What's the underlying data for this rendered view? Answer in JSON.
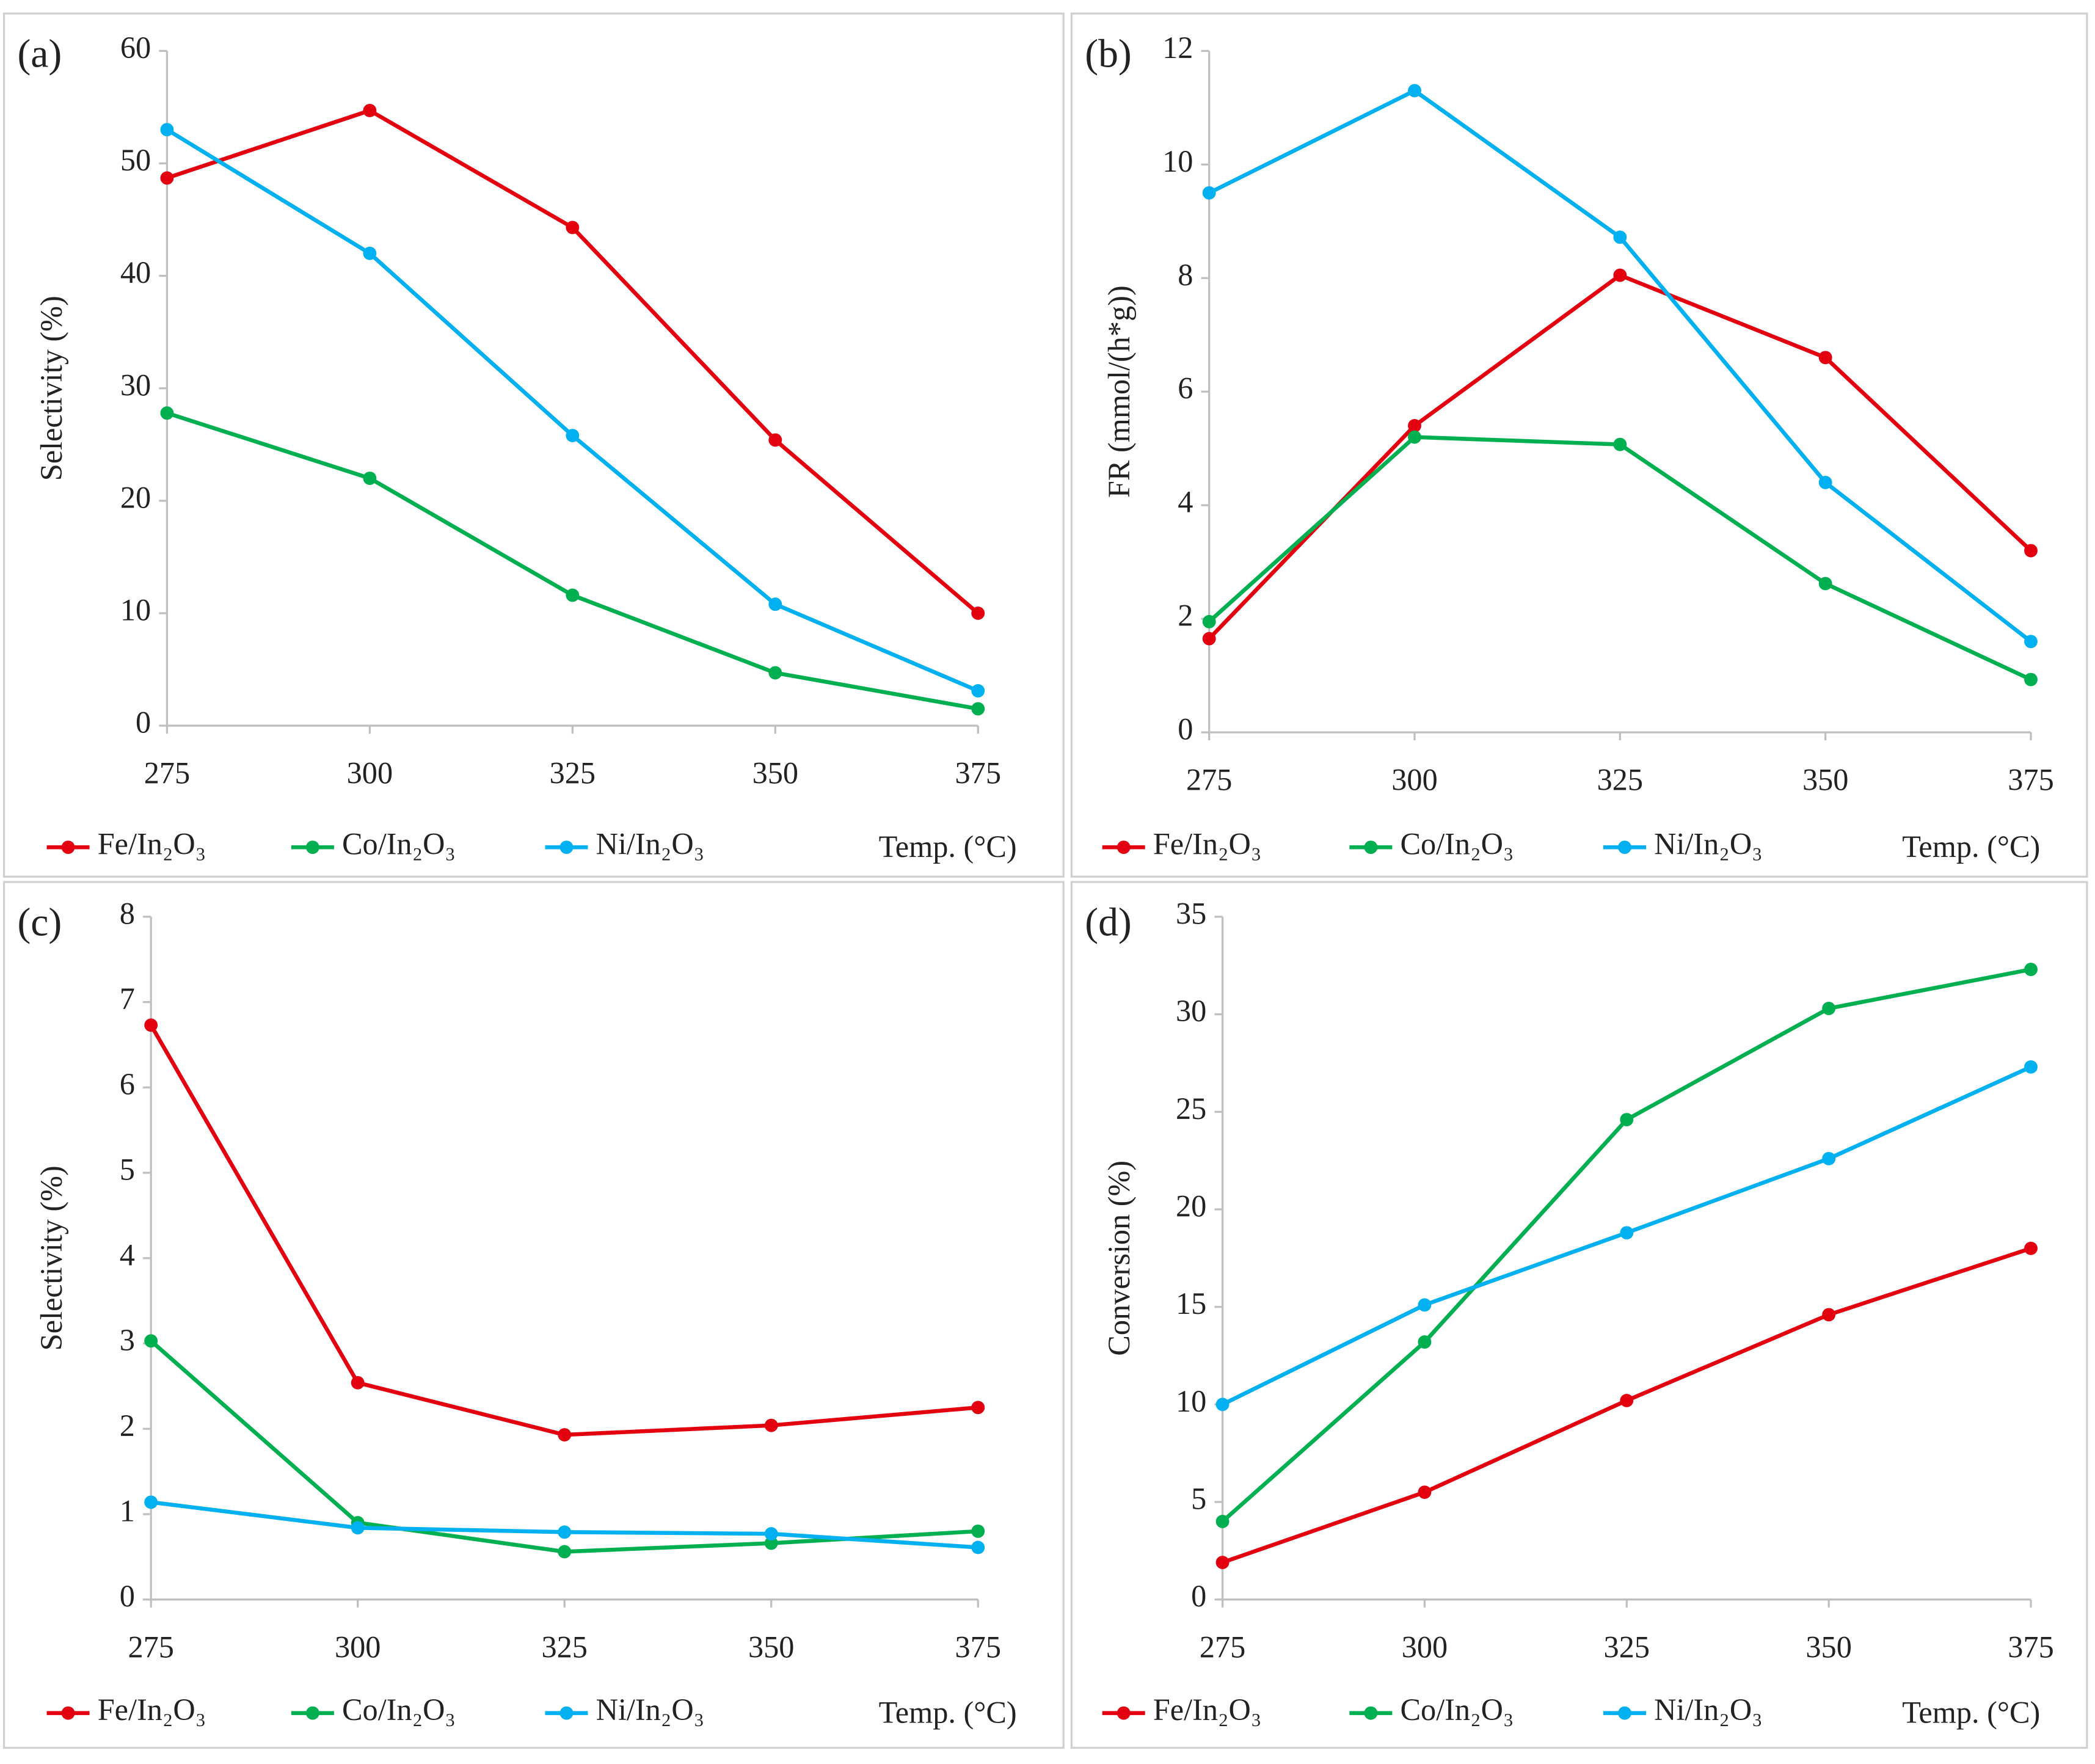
{
  "chart_data": [
    {
      "type": "line",
      "panel_label": "(a)",
      "y_label": "Selectivity (%)",
      "x_label": "Temp. (°C)",
      "x": [
        275,
        300,
        325,
        350,
        375
      ],
      "xlim": [
        275,
        375
      ],
      "xticks": [
        275,
        300,
        325,
        350,
        375
      ],
      "ylim": [
        0,
        60
      ],
      "yticks": [
        0,
        10,
        20,
        30,
        40,
        50,
        60
      ],
      "series": [
        {
          "name": "Fe/In₂O₃",
          "color": "#e3000f",
          "values": [
            48.7,
            54.7,
            44.3,
            25.4,
            10.0
          ]
        },
        {
          "name": "Co/In₂O₃",
          "color": "#00b050",
          "values": [
            27.8,
            22.0,
            11.6,
            4.7,
            1.5
          ]
        },
        {
          "name": "Ni/In₂O₃",
          "color": "#00b0f0",
          "values": [
            53.0,
            42.0,
            25.8,
            10.8,
            3.1
          ]
        }
      ]
    },
    {
      "type": "line",
      "panel_label": "(b)",
      "y_label": "FR (mmol/(h*g))",
      "x_label": "Temp. (°C)",
      "x": [
        275,
        300,
        325,
        350,
        375
      ],
      "xlim": [
        275,
        375
      ],
      "xticks": [
        275,
        300,
        325,
        350,
        375
      ],
      "ylim": [
        0,
        12
      ],
      "yticks": [
        0,
        2,
        4,
        6,
        8,
        10,
        12
      ],
      "series": [
        {
          "name": "Fe/In₂O₃",
          "color": "#e3000f",
          "values": [
            1.65,
            5.4,
            8.05,
            6.6,
            3.2
          ]
        },
        {
          "name": "Co/In₂O₃",
          "color": "#00b050",
          "values": [
            1.95,
            5.2,
            5.07,
            2.62,
            0.93
          ]
        },
        {
          "name": "Ni/In₂O₃",
          "color": "#00b0f0",
          "values": [
            9.5,
            11.3,
            8.72,
            4.4,
            1.6
          ]
        }
      ]
    },
    {
      "type": "line",
      "panel_label": "(c)",
      "y_label": "Selectivity (%)",
      "x_label": "Temp. (°C)",
      "x": [
        275,
        300,
        325,
        350,
        375
      ],
      "xlim": [
        275,
        375
      ],
      "xticks": [
        275,
        300,
        325,
        350,
        375
      ],
      "ylim": [
        0,
        8
      ],
      "yticks": [
        0,
        1,
        2,
        3,
        4,
        5,
        6,
        7,
        8
      ],
      "series": [
        {
          "name": "Fe/In₂O₃",
          "color": "#e3000f",
          "values": [
            6.73,
            2.54,
            1.93,
            2.04,
            2.25
          ]
        },
        {
          "name": "Co/In₂O₃",
          "color": "#00b050",
          "values": [
            3.03,
            0.9,
            0.56,
            0.66,
            0.8
          ]
        },
        {
          "name": "Ni/In₂O₃",
          "color": "#00b0f0",
          "values": [
            1.14,
            0.84,
            0.79,
            0.77,
            0.61
          ]
        }
      ]
    },
    {
      "type": "line",
      "panel_label": "(d)",
      "y_label": "Conversion (%)",
      "x_label": "Temp. (°C)",
      "x": [
        275,
        300,
        325,
        350,
        375
      ],
      "xlim": [
        275,
        375
      ],
      "xticks": [
        275,
        300,
        325,
        350,
        375
      ],
      "ylim": [
        0,
        35
      ],
      "yticks": [
        0,
        5,
        10,
        15,
        20,
        25,
        30,
        35
      ],
      "series": [
        {
          "name": "Fe/In₂O₃",
          "color": "#e3000f",
          "values": [
            1.9,
            5.5,
            10.2,
            14.6,
            18.0
          ]
        },
        {
          "name": "Co/In₂O₃",
          "color": "#00b050",
          "values": [
            4.0,
            13.2,
            24.6,
            30.3,
            32.3
          ]
        },
        {
          "name": "Ni/In₂O₃",
          "color": "#00b0f0",
          "values": [
            10.0,
            15.1,
            18.8,
            22.6,
            27.3
          ]
        }
      ]
    }
  ]
}
